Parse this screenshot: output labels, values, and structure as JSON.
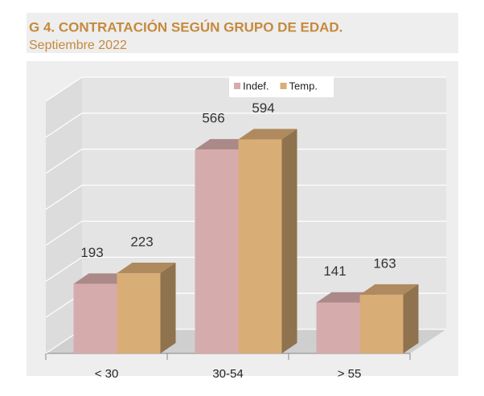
{
  "chart_data": {
    "type": "bar3d",
    "title": "G 4. CONTRATACIÓN SEGÚN GRUPO DE EDAD.",
    "subtitle": "Septiembre 2022",
    "categories": [
      "< 30",
      "30-54",
      "> 55"
    ],
    "series": [
      {
        "name": "Indef.",
        "color": "#d6abab",
        "values": [
          193,
          566,
          141
        ]
      },
      {
        "name": "Temp.",
        "color": "#d9ad76",
        "values": [
          223,
          594,
          163
        ]
      }
    ],
    "ylim": [
      0,
      700
    ],
    "yticks": [
      0,
      100,
      200,
      300,
      400,
      500,
      600,
      700
    ],
    "grid": true,
    "legend": "top"
  }
}
